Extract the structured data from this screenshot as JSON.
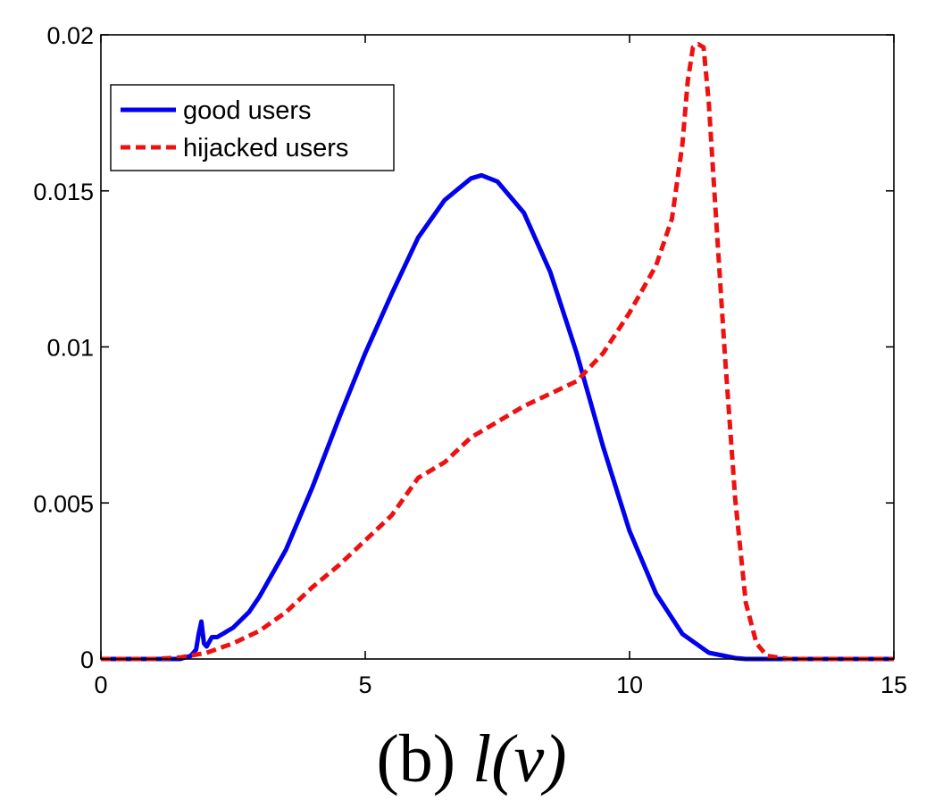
{
  "chart_data": {
    "type": "line",
    "title": "",
    "caption": "(b) l(v)",
    "caption_parts": {
      "label": "(b)",
      "math": "l(v)"
    },
    "xlabel": "",
    "ylabel": "",
    "xlim": [
      0,
      15
    ],
    "ylim": [
      0,
      0.02
    ],
    "xticks": [
      0,
      5,
      10,
      15
    ],
    "xtick_labels": [
      "0",
      "5",
      "10",
      "15"
    ],
    "yticks": [
      0,
      0.005,
      0.01,
      0.015,
      0.02
    ],
    "ytick_labels": [
      "0",
      "0.005",
      "0.01",
      "0.015",
      "0.02"
    ],
    "grid": false,
    "legend_position": "top-left",
    "series": [
      {
        "name": "good users",
        "color": "#0000ee",
        "style": "solid",
        "x": [
          0,
          1.5,
          1.7,
          1.8,
          1.85,
          1.9,
          1.95,
          2.0,
          2.1,
          2.2,
          2.3,
          2.5,
          2.8,
          3.0,
          3.5,
          4.0,
          4.5,
          5.0,
          5.5,
          6.0,
          6.5,
          7.0,
          7.2,
          7.5,
          8.0,
          8.5,
          9.0,
          9.5,
          10.0,
          10.5,
          11.0,
          11.5,
          12.0,
          12.2,
          13.0,
          15.0
        ],
        "y": [
          0,
          0,
          0.0001,
          0.0003,
          0.0008,
          0.0012,
          0.0005,
          0.0004,
          0.0007,
          0.0007,
          0.0008,
          0.001,
          0.0015,
          0.002,
          0.0035,
          0.0055,
          0.0077,
          0.0098,
          0.0117,
          0.0135,
          0.0147,
          0.0154,
          0.0155,
          0.0153,
          0.0143,
          0.0124,
          0.0098,
          0.0068,
          0.0041,
          0.0021,
          0.0008,
          0.0002,
          3e-05,
          0,
          0,
          0
        ]
      },
      {
        "name": "hijacked users",
        "color": "#ee1111",
        "style": "dashed",
        "x": [
          0,
          1.0,
          1.5,
          2.0,
          2.5,
          3.0,
          3.5,
          4.0,
          4.5,
          5.0,
          5.5,
          6.0,
          6.5,
          7.0,
          7.5,
          8.0,
          8.5,
          9.0,
          9.5,
          10.0,
          10.5,
          10.8,
          11.0,
          11.1,
          11.2,
          11.3,
          11.4,
          11.5,
          11.6,
          11.8,
          12.0,
          12.2,
          12.4,
          12.6,
          13.0,
          14.0,
          15.0
        ],
        "y": [
          0,
          0,
          5e-05,
          0.0002,
          0.0005,
          0.0009,
          0.0015,
          0.0023,
          0.003,
          0.0038,
          0.0046,
          0.0058,
          0.0063,
          0.0071,
          0.0076,
          0.0081,
          0.0085,
          0.0089,
          0.0098,
          0.0111,
          0.0126,
          0.0141,
          0.0165,
          0.0185,
          0.0196,
          0.0197,
          0.0196,
          0.0178,
          0.0151,
          0.0098,
          0.0051,
          0.0018,
          0.0005,
          0.0001,
          0,
          0,
          0
        ]
      }
    ]
  }
}
